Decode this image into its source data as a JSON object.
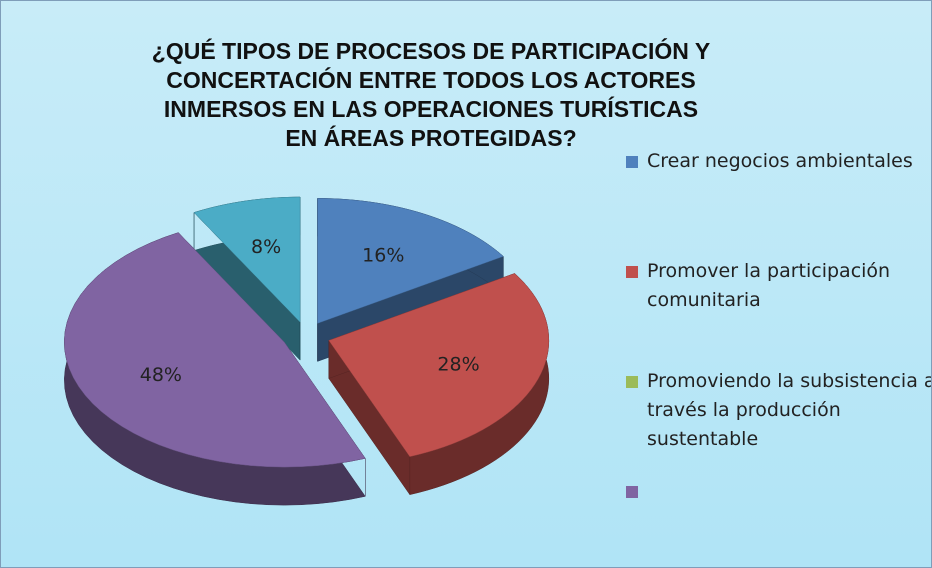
{
  "chart_data": {
    "type": "pie",
    "title": "¿QUÉ TIPOS DE PROCESOS DE PARTICIPACIÓN Y CONCERTACIÓN ENTRE TODOS LOS ACTORES INMERSOS EN LAS OPERACIONES TURÍSTICAS EN ÁREAS PROTEGIDAS?",
    "values": [
      16,
      28,
      0,
      48,
      8
    ],
    "value_labels": [
      "16%",
      "28%",
      null,
      "48%",
      "8%"
    ],
    "colors": [
      "#4f81bd",
      "#c0504d",
      "#9bbb59",
      "#8064a2",
      "#4bacc6"
    ],
    "legend": [
      {
        "name": "Crear negocios ambientales",
        "color": "#4f81bd"
      },
      {
        "name": "Promover la participación comunitaria",
        "color": "#c0504d"
      },
      {
        "name": "Promoviendo la subsistencia a través la producción sustentable",
        "color": "#9bbb59"
      },
      {
        "name": null,
        "color": "#8064a2"
      }
    ]
  }
}
